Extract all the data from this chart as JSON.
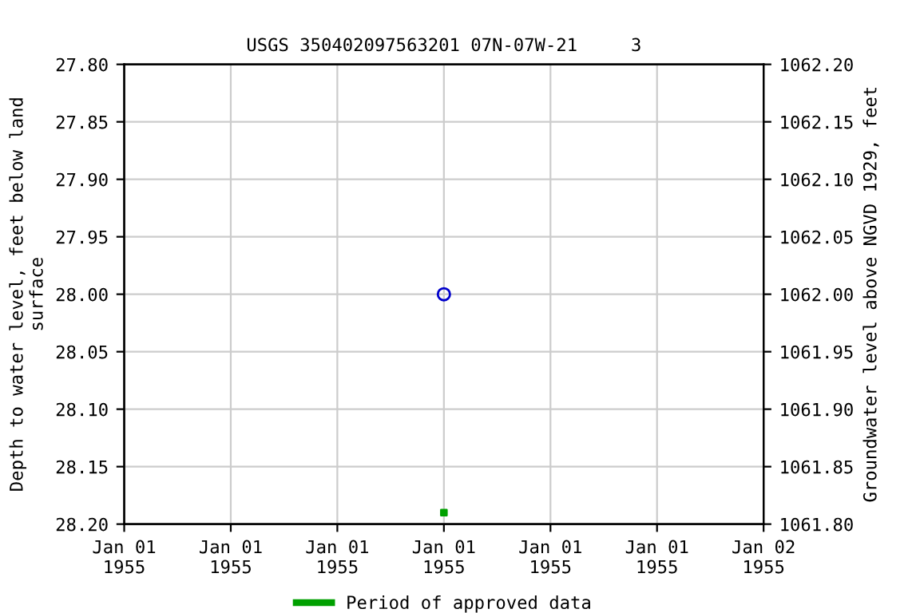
{
  "chart_data": {
    "type": "scatter",
    "title": "USGS 350402097563201 07N-07W-21     3",
    "ylabel": "Depth to water level, feet below land\nsurface",
    "y2label": "Groundwater level above NGVD 1929, feet",
    "series": [
      {
        "marker": "circle",
        "color": "#0000cc",
        "x": [
          "1955-01-01T12:00"
        ],
        "values": [
          28.0
        ]
      },
      {
        "marker": "square",
        "name": "Period of approved data",
        "color": "#00a000",
        "x": [
          "1955-01-01T12:00"
        ],
        "values": [
          28.19
        ]
      }
    ],
    "xlim": [
      "1955-01-01T00:00",
      "1955-01-02T00:00"
    ],
    "xticks": [
      {
        "value": "1955-01-01T00:00",
        "label": "Jan 01\n1955"
      },
      {
        "value": "1955-01-01T04:00",
        "label": "Jan 01\n1955"
      },
      {
        "value": "1955-01-01T08:00",
        "label": "Jan 01\n1955"
      },
      {
        "value": "1955-01-01T12:00",
        "label": "Jan 01\n1955"
      },
      {
        "value": "1955-01-01T16:00",
        "label": "Jan 01\n1955"
      },
      {
        "value": "1955-01-01T20:00",
        "label": "Jan 01\n1955"
      },
      {
        "value": "1955-01-02T00:00",
        "label": "Jan 02\n1955"
      }
    ],
    "ylim": [
      28.2,
      27.8
    ],
    "yticks": [
      {
        "value": 27.8,
        "label": "27.80"
      },
      {
        "value": 27.85,
        "label": "27.85"
      },
      {
        "value": 27.9,
        "label": "27.90"
      },
      {
        "value": 27.95,
        "label": "27.95"
      },
      {
        "value": 28.0,
        "label": "28.00"
      },
      {
        "value": 28.05,
        "label": "28.05"
      },
      {
        "value": 28.1,
        "label": "28.10"
      },
      {
        "value": 28.15,
        "label": "28.15"
      },
      {
        "value": 28.2,
        "label": "28.20"
      }
    ],
    "y2lim": [
      1061.8,
      1062.2
    ],
    "y2ticks": [
      {
        "value": 1061.8,
        "label": "1061.80"
      },
      {
        "value": 1061.85,
        "label": "1061.85"
      },
      {
        "value": 1061.9,
        "label": "1061.90"
      },
      {
        "value": 1061.95,
        "label": "1061.95"
      },
      {
        "value": 1062.0,
        "label": "1062.00"
      },
      {
        "value": 1062.05,
        "label": "1062.05"
      },
      {
        "value": 1062.1,
        "label": "1062.10"
      },
      {
        "value": 1062.15,
        "label": "1062.15"
      },
      {
        "value": 1062.2,
        "label": "1062.20"
      }
    ],
    "grid": true,
    "legend": "bottom"
  }
}
